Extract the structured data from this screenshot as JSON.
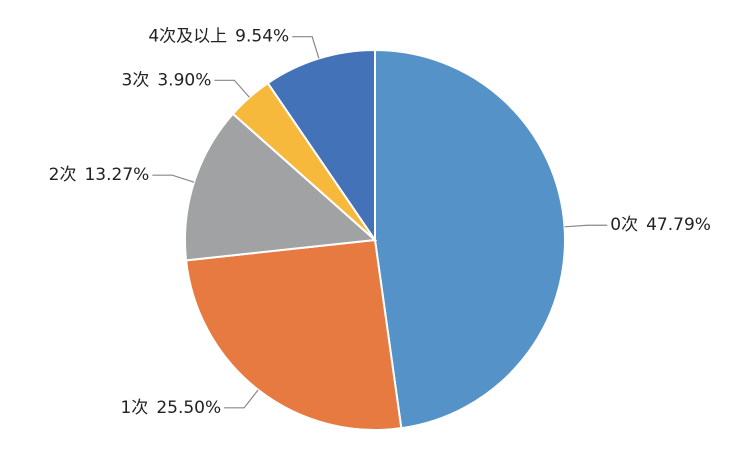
{
  "chart_data": {
    "type": "pie",
    "categories": [
      "0次",
      "1次",
      "2次",
      "3次",
      "4次及以上"
    ],
    "values": [
      47.79,
      25.5,
      13.27,
      3.9,
      9.54
    ],
    "value_labels": [
      "47.79%",
      "25.50%",
      "13.27%",
      "3.90%",
      "9.54%"
    ],
    "colors": [
      "#5592c8",
      "#e67a40",
      "#a0a2a4",
      "#f6b93b",
      "#4472b8"
    ]
  }
}
